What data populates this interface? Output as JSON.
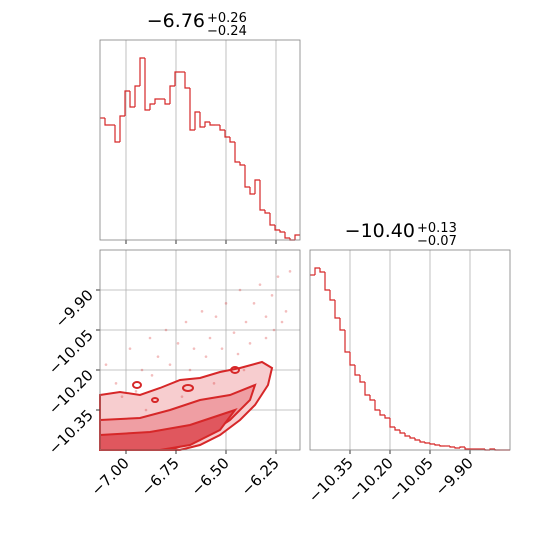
{
  "chart_data": [
    {
      "type": "histogram",
      "title": "−6.76",
      "title_upper": "+0.26",
      "title_lower": "−0.24",
      "color": "#d62728",
      "bins": [
        -7.13,
        -7.105,
        -7.08,
        -7.055,
        -7.03,
        -7.005,
        -6.98,
        -6.955,
        -6.93,
        -6.905,
        -6.88,
        -6.855,
        -6.83,
        -6.805,
        -6.78,
        -6.755,
        -6.73,
        -6.705,
        -6.68,
        -6.655,
        -6.63,
        -6.605,
        -6.58,
        -6.555,
        -6.53,
        -6.505,
        -6.48,
        -6.455,
        -6.43,
        -6.405,
        -6.38,
        -6.355,
        -6.33,
        -6.305,
        -6.28,
        -6.255,
        -6.23,
        -6.205,
        -6.18,
        -6.155,
        -6.13
      ],
      "counts": [
        122,
        115,
        115,
        98,
        124,
        149,
        133,
        154,
        182,
        130,
        136,
        141,
        141,
        136,
        154,
        168,
        168,
        152,
        110,
        128,
        113,
        118,
        115,
        115,
        110,
        103,
        98,
        78,
        75,
        53,
        46,
        60,
        30,
        27,
        15,
        10,
        8,
        2,
        0,
        5
      ],
      "xlim": [
        -7.13,
        -6.13
      ],
      "ylim": [
        0,
        200
      ],
      "xticks": [
        -7,
        -6.75,
        -6.5,
        -6.25
      ],
      "grid": true
    },
    {
      "type": "scatter",
      "color": "#d62728",
      "x": [
        -7.1,
        -7.05,
        -6.98,
        -6.92,
        -6.88,
        -6.84,
        -6.8,
        -6.74,
        -6.7,
        -6.66,
        -6.62,
        -6.58,
        -6.55,
        -6.5,
        -6.46,
        -6.43,
        -6.4,
        -6.36,
        -6.33,
        -6.3,
        -6.27,
        -6.24,
        -6.2,
        -6.18,
        -7.02,
        -6.95,
        -6.87,
        -6.78,
        -6.68,
        -6.6,
        -6.52,
        -6.44,
        -6.38,
        -6.3,
        -6.26,
        -6.22,
        -6.9,
        -6.72,
        -6.56,
        -6.41
      ],
      "y": [
        -10.18,
        -10.25,
        -10.12,
        -10.2,
        -10.08,
        -10.15,
        -10.05,
        -10.1,
        -10.02,
        -10.12,
        -9.98,
        -10.08,
        -10.0,
        -9.95,
        -10.06,
        -9.9,
        -10.02,
        -9.95,
        -9.88,
        -10.0,
        -9.92,
        -9.85,
        -9.98,
        -9.83,
        -10.3,
        -10.28,
        -10.22,
        -10.18,
        -10.2,
        -10.15,
        -10.12,
        -10.14,
        -10.1,
        -10.08,
        -10.05,
        -10.02,
        -10.35,
        -10.3,
        -10.25,
        -10.2
      ],
      "xlim": [
        -7.13,
        -6.13
      ],
      "ylim": [
        -10.5,
        -9.75
      ],
      "xticks": [
        {
          "value": -7,
          "label": "−7.00"
        },
        {
          "value": -6.75,
          "label": "−6.75"
        },
        {
          "value": -6.5,
          "label": "−6.50"
        },
        {
          "value": -6.25,
          "label": "−6.25"
        }
      ],
      "yticks": [
        {
          "value": -10.35,
          "label": "−10.35"
        },
        {
          "value": -10.2,
          "label": "−10.20"
        },
        {
          "value": -10.05,
          "label": "−10.05"
        },
        {
          "value": -9.9,
          "label": "−9.90"
        }
      ],
      "grid": true
    },
    {
      "type": "histogram",
      "title": "−10.40",
      "title_upper": "+0.13",
      "title_lower": "−0.07",
      "color": "#d62728",
      "bins": [
        -10.5,
        -10.48125,
        -10.4625,
        -10.44375,
        -10.425,
        -10.40625,
        -10.3875,
        -10.36875,
        -10.35,
        -10.33125,
        -10.3125,
        -10.29375,
        -10.275,
        -10.25625,
        -10.2375,
        -10.21875,
        -10.2,
        -10.18125,
        -10.1625,
        -10.14375,
        -10.125,
        -10.10625,
        -10.0875,
        -10.06875,
        -10.05,
        -10.03125,
        -10.0125,
        -9.99375,
        -9.975,
        -9.95625,
        -9.9375,
        -9.91875,
        -9.9,
        -9.88125,
        -9.8625,
        -9.84375,
        -9.825,
        -9.80625,
        -9.7875,
        -9.76875,
        -9.75
      ],
      "counts": [
        175,
        182,
        178,
        160,
        150,
        132,
        120,
        98,
        85,
        75,
        68,
        55,
        50,
        40,
        35,
        32,
        23,
        20,
        17,
        14,
        12,
        10,
        8,
        7,
        6,
        5,
        4,
        4,
        3,
        2,
        3,
        1,
        1,
        1,
        1,
        0,
        1,
        0,
        0,
        0
      ],
      "xlim": [
        -10.5,
        -9.75
      ],
      "ylim": [
        0,
        200
      ],
      "xticks": [
        {
          "value": -10.35,
          "label": "−10.35"
        },
        {
          "value": -10.2,
          "label": "−10.20"
        },
        {
          "value": -10.05,
          "label": "−10.05"
        },
        {
          "value": -9.9,
          "label": "−9.90"
        }
      ],
      "grid": true
    }
  ]
}
